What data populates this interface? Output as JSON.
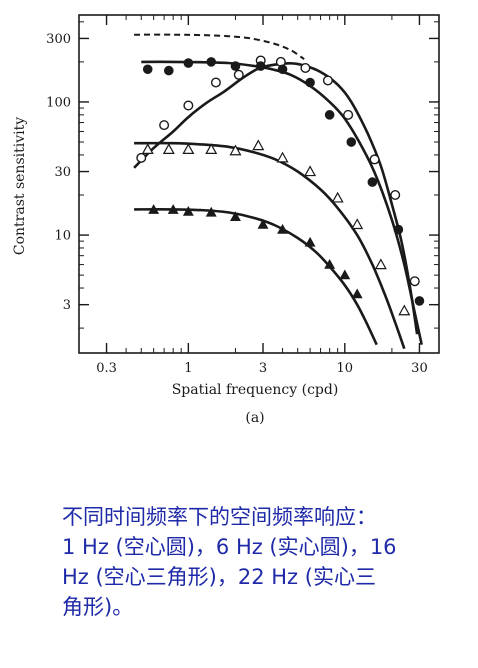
{
  "chart_data": {
    "type": "scatter",
    "xlabel": "Spatial frequency (cpd)",
    "ylabel": "Contrast sensitivity",
    "panel_label": "(a)",
    "x_scale": "log",
    "y_scale": "log",
    "xlim": [
      0.2,
      40
    ],
    "ylim": [
      1.3,
      450
    ],
    "x_ticks": [
      0.3,
      1,
      3,
      10,
      30
    ],
    "x_tick_labels": [
      "0.3",
      "1",
      "3",
      "10",
      "30"
    ],
    "y_ticks": [
      3,
      10,
      30,
      100,
      300
    ],
    "y_tick_labels": [
      "3",
      "10",
      "30",
      "100",
      "300"
    ],
    "colors": {
      "ink": "#1a1a1a",
      "caption": "#1f2aa8"
    },
    "series": [
      {
        "marker": "open-circle",
        "points": [
          [
            0.5,
            38
          ],
          [
            0.7,
            67
          ],
          [
            1,
            94
          ],
          [
            1.5,
            140
          ],
          [
            2.1,
            160
          ],
          [
            2.9,
            205
          ],
          [
            3.9,
            200
          ],
          [
            5.6,
            180
          ],
          [
            7.8,
            145
          ],
          [
            10.5,
            80
          ],
          [
            15.5,
            37
          ],
          [
            21,
            20
          ],
          [
            28,
            4.5
          ]
        ],
        "curve": [
          [
            0.45,
            32
          ],
          [
            0.6,
            45
          ],
          [
            0.8,
            60
          ],
          [
            1,
            77
          ],
          [
            1.3,
            98
          ],
          [
            1.7,
            120
          ],
          [
            2.2,
            150
          ],
          [
            2.8,
            178
          ],
          [
            3.5,
            190
          ],
          [
            4.5,
            195
          ],
          [
            5.5,
            188
          ],
          [
            7,
            168
          ],
          [
            9,
            135
          ],
          [
            11,
            100
          ],
          [
            14,
            58
          ],
          [
            17,
            33
          ],
          [
            20,
            17
          ],
          [
            23,
            9
          ],
          [
            26,
            4.2
          ],
          [
            29,
            1.8
          ]
        ]
      },
      {
        "marker": "filled-circle",
        "points": [
          [
            0.55,
            176
          ],
          [
            0.75,
            172
          ],
          [
            1,
            196
          ],
          [
            1.4,
            200
          ],
          [
            2,
            186
          ],
          [
            2.9,
            186
          ],
          [
            4,
            176
          ],
          [
            6,
            140
          ],
          [
            8,
            80
          ],
          [
            11,
            50
          ],
          [
            15,
            25
          ],
          [
            22,
            11
          ],
          [
            30,
            3.2
          ]
        ],
        "curve": [
          [
            0.5,
            200
          ],
          [
            0.8,
            200
          ],
          [
            1.2,
            199
          ],
          [
            1.8,
            196
          ],
          [
            2.5,
            188
          ],
          [
            3.5,
            175
          ],
          [
            4.5,
            160
          ],
          [
            6,
            132
          ],
          [
            8,
            100
          ],
          [
            10,
            75
          ],
          [
            13,
            45
          ],
          [
            16,
            27
          ],
          [
            20,
            13
          ],
          [
            24,
            6
          ],
          [
            28,
            2.6
          ],
          [
            31,
            1.5
          ]
        ]
      },
      {
        "marker": "open-triangle",
        "points": [
          [
            0.55,
            44
          ],
          [
            0.75,
            44
          ],
          [
            1,
            44
          ],
          [
            1.4,
            44
          ],
          [
            2,
            43
          ],
          [
            2.8,
            47
          ],
          [
            4,
            38
          ],
          [
            6,
            30
          ],
          [
            9,
            19
          ],
          [
            12,
            12
          ],
          [
            17,
            6
          ],
          [
            24,
            2.7
          ]
        ],
        "curve": [
          [
            0.45,
            49
          ],
          [
            0.8,
            49
          ],
          [
            1.2,
            48
          ],
          [
            1.8,
            46
          ],
          [
            2.6,
            42
          ],
          [
            3.6,
            37
          ],
          [
            5,
            30
          ],
          [
            7,
            22
          ],
          [
            9,
            16
          ],
          [
            12,
            10
          ],
          [
            15,
            6
          ],
          [
            18,
            3.6
          ],
          [
            21,
            2.2
          ],
          [
            24,
            1.4
          ]
        ]
      },
      {
        "marker": "filled-triangle",
        "points": [
          [
            0.6,
            15.5
          ],
          [
            0.8,
            15.5
          ],
          [
            1,
            15
          ],
          [
            1.4,
            14.8
          ],
          [
            2,
            13.7
          ],
          [
            3,
            12
          ],
          [
            4,
            11
          ],
          [
            6,
            8.8
          ],
          [
            8,
            6
          ],
          [
            10,
            5
          ],
          [
            12,
            3.6
          ]
        ],
        "curve": [
          [
            0.45,
            15.6
          ],
          [
            0.8,
            15.6
          ],
          [
            1.2,
            15.4
          ],
          [
            1.8,
            14.8
          ],
          [
            2.6,
            13.5
          ],
          [
            3.6,
            11.8
          ],
          [
            5,
            9.5
          ],
          [
            6.5,
            7.5
          ],
          [
            8,
            5.8
          ],
          [
            10,
            4.2
          ],
          [
            12,
            3
          ],
          [
            14,
            2.1
          ],
          [
            16,
            1.5
          ]
        ]
      },
      {
        "marker": "none",
        "dashed": true,
        "curve": [
          [
            0.45,
            320
          ],
          [
            0.8,
            320
          ],
          [
            1.2,
            318
          ],
          [
            1.8,
            312
          ],
          [
            2.5,
            300
          ],
          [
            3.5,
            275
          ],
          [
            4.5,
            245
          ],
          [
            5.5,
            210
          ]
        ]
      }
    ]
  },
  "caption": {
    "lines": [
      "不同时间频率下的空间频率响应：",
      "1 Hz (空心圆)，6 Hz (实心圆)，16",
      "Hz  (空心三角形)，22  Hz  (实心三",
      "角形)。"
    ]
  }
}
